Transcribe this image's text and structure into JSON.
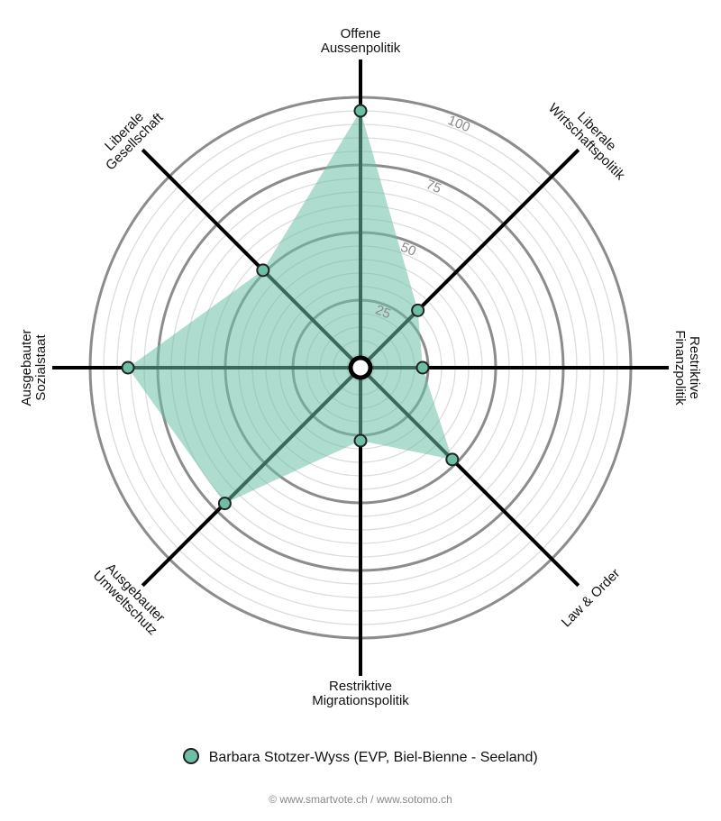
{
  "chart_data": {
    "type": "radar",
    "axes": [
      {
        "label_lines": [
          "Offene",
          "Aussenpolitik"
        ]
      },
      {
        "label_lines": [
          "Liberale",
          "Wirtschaftspolitik"
        ]
      },
      {
        "label_lines": [
          "Restriktive",
          "Finanzpolitik"
        ]
      },
      {
        "label_lines": [
          "Law & Order"
        ]
      },
      {
        "label_lines": [
          "Restriktive",
          "Migrationspolitik"
        ]
      },
      {
        "label_lines": [
          "Ausgebauter",
          "Umweltschutz"
        ]
      },
      {
        "label_lines": [
          "Ausgebauter",
          "Sozialstaat"
        ]
      },
      {
        "label_lines": [
          "Liberale",
          "Gesellschaft"
        ]
      }
    ],
    "ticks": [
      25,
      50,
      75,
      100
    ],
    "range": [
      0,
      100
    ],
    "series": [
      {
        "name": "Barbara Stotzer-Wyss (EVP, Biel-Bienne - Seeland)",
        "values": [
          95,
          30,
          23,
          48,
          27,
          71,
          86,
          51
        ],
        "color": "#6cbfa5"
      }
    ]
  },
  "legend": {
    "label": "Barbara Stotzer-Wyss (EVP, Biel-Bienne - Seeland)"
  },
  "footer": "© www.smartvote.ch / www.sotomo.ch"
}
